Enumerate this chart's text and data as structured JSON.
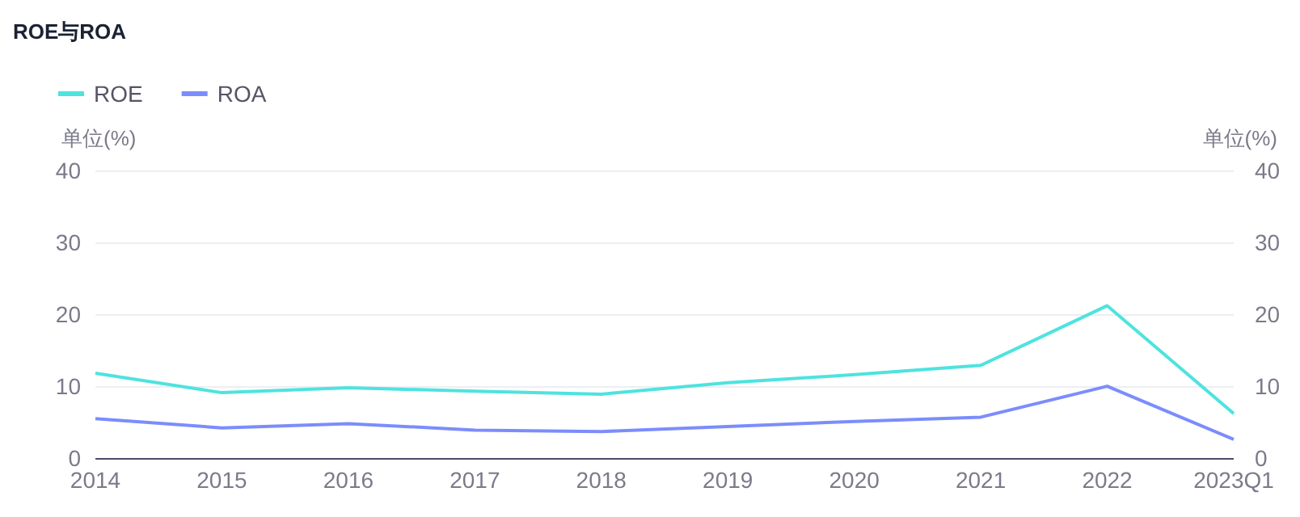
{
  "chart_data": {
    "type": "line",
    "title": "ROE与ROA",
    "ylabel": "单位(%)",
    "y2label": "单位(%)",
    "categories": [
      "2014",
      "2015",
      "2016",
      "2017",
      "2018",
      "2019",
      "2020",
      "2021",
      "2022",
      "2023Q1"
    ],
    "series": [
      {
        "name": "ROE",
        "color": "#4ee3df",
        "values": [
          11.9,
          9.2,
          9.9,
          9.4,
          9.0,
          10.6,
          11.7,
          13.0,
          21.3,
          6.3
        ]
      },
      {
        "name": "ROA",
        "color": "#7b8dfc",
        "values": [
          5.6,
          4.3,
          4.9,
          4.0,
          3.8,
          4.5,
          5.2,
          5.8,
          10.1,
          2.7
        ]
      }
    ],
    "ylim": [
      0,
      40
    ],
    "yticks": [
      0,
      10,
      20,
      30,
      40
    ],
    "y2lim": [
      0,
      40
    ],
    "y2ticks": [
      0,
      10,
      20,
      30,
      40
    ],
    "grid": "y",
    "legend": "top left",
    "marker": "none",
    "line_style": "solid"
  }
}
